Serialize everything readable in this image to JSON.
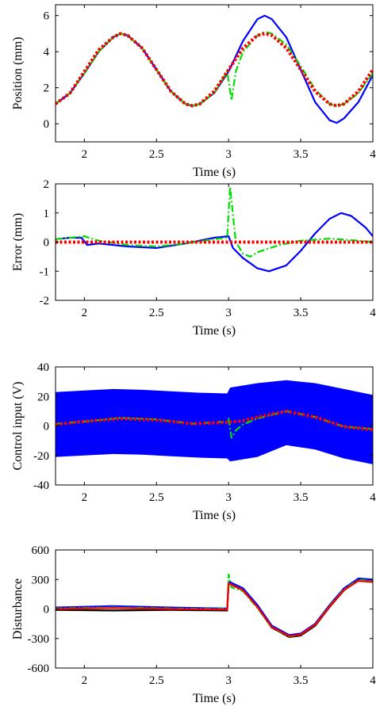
{
  "chart_data": [
    {
      "type": "line",
      "xlabel": "Time (s)",
      "ylabel": "Position (mm)",
      "xlim": [
        1.8,
        4.0
      ],
      "ylim": [
        -1,
        6.6
      ],
      "xticks": [
        2,
        2.5,
        3,
        3.5,
        4
      ],
      "xtick_labels": [
        "2",
        "2.5",
        "3",
        "3.5",
        "4"
      ],
      "yticks": [
        0,
        2,
        4,
        6
      ],
      "ytick_labels": [
        "0",
        "2",
        "4",
        "6"
      ],
      "series": [
        {
          "color": "#0000ff",
          "style": "solid",
          "x": [
            1.8,
            1.9,
            2.0,
            2.1,
            2.2,
            2.25,
            2.3,
            2.4,
            2.5,
            2.6,
            2.7,
            2.75,
            2.8,
            2.9,
            3.0,
            3.1,
            3.2,
            3.25,
            3.3,
            3.4,
            3.5,
            3.6,
            3.7,
            3.75,
            3.8,
            3.9,
            4.0
          ],
          "y": [
            1.1,
            1.7,
            2.8,
            4.0,
            4.8,
            5.0,
            4.9,
            4.2,
            3.0,
            1.8,
            1.1,
            1.0,
            1.1,
            1.7,
            2.9,
            4.6,
            5.8,
            6.0,
            5.8,
            4.8,
            3.0,
            1.2,
            0.2,
            0.05,
            0.3,
            1.2,
            2.7
          ]
        },
        {
          "color": "#00dd00",
          "style": "dashdot",
          "x": [
            1.8,
            1.9,
            2.0,
            2.1,
            2.2,
            2.25,
            2.3,
            2.4,
            2.5,
            2.6,
            2.7,
            2.75,
            2.8,
            2.9,
            2.99,
            3.02,
            3.05,
            3.1,
            3.2,
            3.25,
            3.3,
            3.4,
            3.5,
            3.6,
            3.7,
            3.75,
            3.8,
            3.9,
            4.0
          ],
          "y": [
            1.1,
            1.7,
            2.8,
            4.0,
            4.8,
            5.0,
            4.9,
            4.2,
            3.0,
            1.8,
            1.1,
            1.0,
            1.1,
            1.7,
            2.9,
            1.3,
            2.9,
            4.0,
            4.9,
            5.1,
            5.0,
            4.4,
            3.2,
            1.9,
            1.1,
            1.0,
            1.1,
            1.7,
            2.8
          ]
        },
        {
          "color": "#ff0000",
          "style": "dotted",
          "x": [
            1.8,
            1.9,
            2.0,
            2.1,
            2.2,
            2.25,
            2.3,
            2.4,
            2.5,
            2.6,
            2.7,
            2.75,
            2.8,
            2.9,
            3.0,
            3.1,
            3.2,
            3.25,
            3.3,
            3.4,
            3.5,
            3.6,
            3.7,
            3.75,
            3.8,
            3.9,
            4.0
          ],
          "y": [
            1.1,
            1.7,
            2.9,
            4.1,
            4.8,
            5.0,
            4.9,
            4.2,
            3.0,
            1.8,
            1.1,
            1.0,
            1.1,
            1.8,
            3.0,
            4.2,
            4.9,
            5.0,
            4.9,
            4.2,
            3.0,
            1.8,
            1.1,
            1.0,
            1.1,
            1.8,
            3.0
          ]
        }
      ]
    },
    {
      "type": "line",
      "xlabel": "Time (s)",
      "ylabel": "Error (mm)",
      "xlim": [
        1.8,
        4.0
      ],
      "ylim": [
        -2,
        2
      ],
      "xticks": [
        2,
        2.5,
        3,
        3.5,
        4
      ],
      "xtick_labels": [
        "2",
        "2.5",
        "3",
        "3.5",
        "4"
      ],
      "yticks": [
        -2,
        -1,
        0,
        1,
        2
      ],
      "ytick_labels": [
        "-2",
        "-1",
        "0",
        "1",
        "2"
      ],
      "series": [
        {
          "color": "#0000ff",
          "style": "solid",
          "x": [
            1.8,
            1.9,
            1.98,
            2.02,
            2.1,
            2.3,
            2.5,
            2.7,
            2.9,
            3.0,
            3.03,
            3.1,
            3.2,
            3.28,
            3.4,
            3.5,
            3.6,
            3.7,
            3.78,
            3.85,
            3.95,
            4.0
          ],
          "y": [
            0.1,
            0.15,
            0.15,
            -0.1,
            -0.05,
            -0.15,
            -0.2,
            -0.05,
            0.15,
            0.2,
            -0.2,
            -0.55,
            -0.9,
            -1.0,
            -0.8,
            -0.3,
            0.3,
            0.8,
            1.0,
            0.9,
            0.5,
            0.2
          ]
        },
        {
          "color": "#00dd00",
          "style": "dashdot",
          "x": [
            1.8,
            1.9,
            2.0,
            2.05,
            2.1,
            2.3,
            2.5,
            2.7,
            2.9,
            2.99,
            3.01,
            3.05,
            3.1,
            3.15,
            3.2,
            3.35,
            3.5,
            3.7,
            3.9,
            4.0
          ],
          "y": [
            0.1,
            0.15,
            0.2,
            0.12,
            0.05,
            -0.1,
            -0.15,
            -0.05,
            0.1,
            0.15,
            1.9,
            0.0,
            -0.4,
            -0.5,
            -0.35,
            -0.1,
            0.05,
            0.12,
            0.05,
            0.0
          ]
        },
        {
          "color": "#ff0000",
          "style": "dotted",
          "x": [
            1.8,
            4.0
          ],
          "y": [
            0.0,
            0.0
          ]
        }
      ]
    },
    {
      "type": "line",
      "xlabel": "Time (s)",
      "ylabel": "Control input (V)",
      "xlim": [
        1.8,
        4.0
      ],
      "ylim": [
        -40,
        40
      ],
      "xticks": [
        2,
        2.5,
        3,
        3.5,
        4
      ],
      "xtick_labels": [
        "2",
        "2.5",
        "3",
        "3.5",
        "4"
      ],
      "yticks": [
        -40,
        -20,
        0,
        20,
        40
      ],
      "ytick_labels": [
        "-40",
        "-20",
        "0",
        "20",
        "40"
      ],
      "band": {
        "color": "#0000ff",
        "x": [
          1.8,
          2.0,
          2.2,
          2.4,
          2.6,
          2.8,
          2.99,
          3.01,
          3.2,
          3.4,
          3.6,
          3.8,
          4.0
        ],
        "upper": [
          23,
          24,
          25,
          24.5,
          23.5,
          22.5,
          22,
          26,
          29,
          31,
          29,
          25,
          21
        ],
        "lower": [
          -21,
          -20,
          -19,
          -19.5,
          -20.5,
          -21.5,
          -22,
          -24,
          -21,
          -13,
          -16,
          -22,
          -26
        ]
      },
      "series": [
        {
          "color": "#00dd00",
          "style": "dashdot",
          "x": [
            1.8,
            2.0,
            2.25,
            2.5,
            2.75,
            2.99,
            3.0,
            3.02,
            3.05,
            3.1,
            3.2,
            3.4,
            3.6,
            3.8,
            4.0
          ],
          "y": [
            1.5,
            3,
            5.5,
            4.5,
            1.5,
            3,
            5,
            -8,
            -3,
            1,
            5,
            10,
            6,
            -0.5,
            -2
          ]
        },
        {
          "color": "#ff0000",
          "style": "dotted",
          "x": [
            1.8,
            2.0,
            2.25,
            2.5,
            2.75,
            3.0,
            3.1,
            3.2,
            3.4,
            3.6,
            3.8,
            4.0
          ],
          "y": [
            1,
            3,
            5,
            4,
            1.5,
            2.5,
            3.5,
            6,
            10,
            6,
            -0.5,
            -2.5
          ]
        }
      ]
    },
    {
      "type": "line",
      "xlabel": "Time (s)",
      "ylabel": "Disturbance",
      "xlim": [
        1.8,
        4.0
      ],
      "ylim": [
        -600,
        600
      ],
      "xticks": [
        2,
        2.5,
        3,
        3.5,
        4
      ],
      "xtick_labels": [
        "2",
        "2.5",
        "3",
        "3.5",
        "4"
      ],
      "yticks": [
        -600,
        -300,
        0,
        300,
        600
      ],
      "ytick_labels": [
        "-600",
        "-300",
        "0",
        "300",
        "600"
      ],
      "series": [
        {
          "color": "#000000",
          "style": "solid",
          "x": [
            1.8,
            2.2,
            2.6,
            2.99,
            3.0,
            3.1,
            3.2,
            3.3,
            3.42,
            3.5,
            3.6,
            3.7,
            3.8,
            3.9,
            4.0
          ],
          "y": [
            -10,
            -15,
            -10,
            -15,
            260,
            190,
            20,
            -190,
            -285,
            -270,
            -170,
            20,
            190,
            290,
            280
          ]
        },
        {
          "color": "#0000ff",
          "style": "solid",
          "x": [
            1.8,
            2.2,
            2.6,
            2.99,
            3.0,
            3.1,
            3.2,
            3.3,
            3.42,
            3.5,
            3.6,
            3.7,
            3.8,
            3.9,
            4.0
          ],
          "y": [
            15,
            30,
            15,
            5,
            280,
            210,
            40,
            -170,
            -265,
            -250,
            -150,
            40,
            210,
            310,
            300
          ]
        },
        {
          "color": "#00dd00",
          "style": "dashdot",
          "x": [
            1.8,
            2.2,
            2.6,
            2.99,
            3.0,
            3.02,
            3.1,
            3.2,
            3.3,
            3.42,
            3.5,
            3.6,
            3.7,
            3.8,
            3.9,
            4.0
          ],
          "y": [
            5,
            15,
            5,
            0,
            350,
            220,
            180,
            10,
            -190,
            -280,
            -260,
            -160,
            30,
            200,
            295,
            285
          ]
        },
        {
          "color": "#ff0000",
          "style": "solid",
          "x": [
            1.8,
            2.2,
            2.6,
            2.99,
            3.0,
            3.1,
            3.2,
            3.3,
            3.42,
            3.5,
            3.6,
            3.7,
            3.8,
            3.9,
            4.0
          ],
          "y": [
            0,
            10,
            0,
            -5,
            260,
            190,
            20,
            -185,
            -275,
            -260,
            -160,
            25,
            195,
            285,
            275
          ]
        }
      ]
    }
  ]
}
